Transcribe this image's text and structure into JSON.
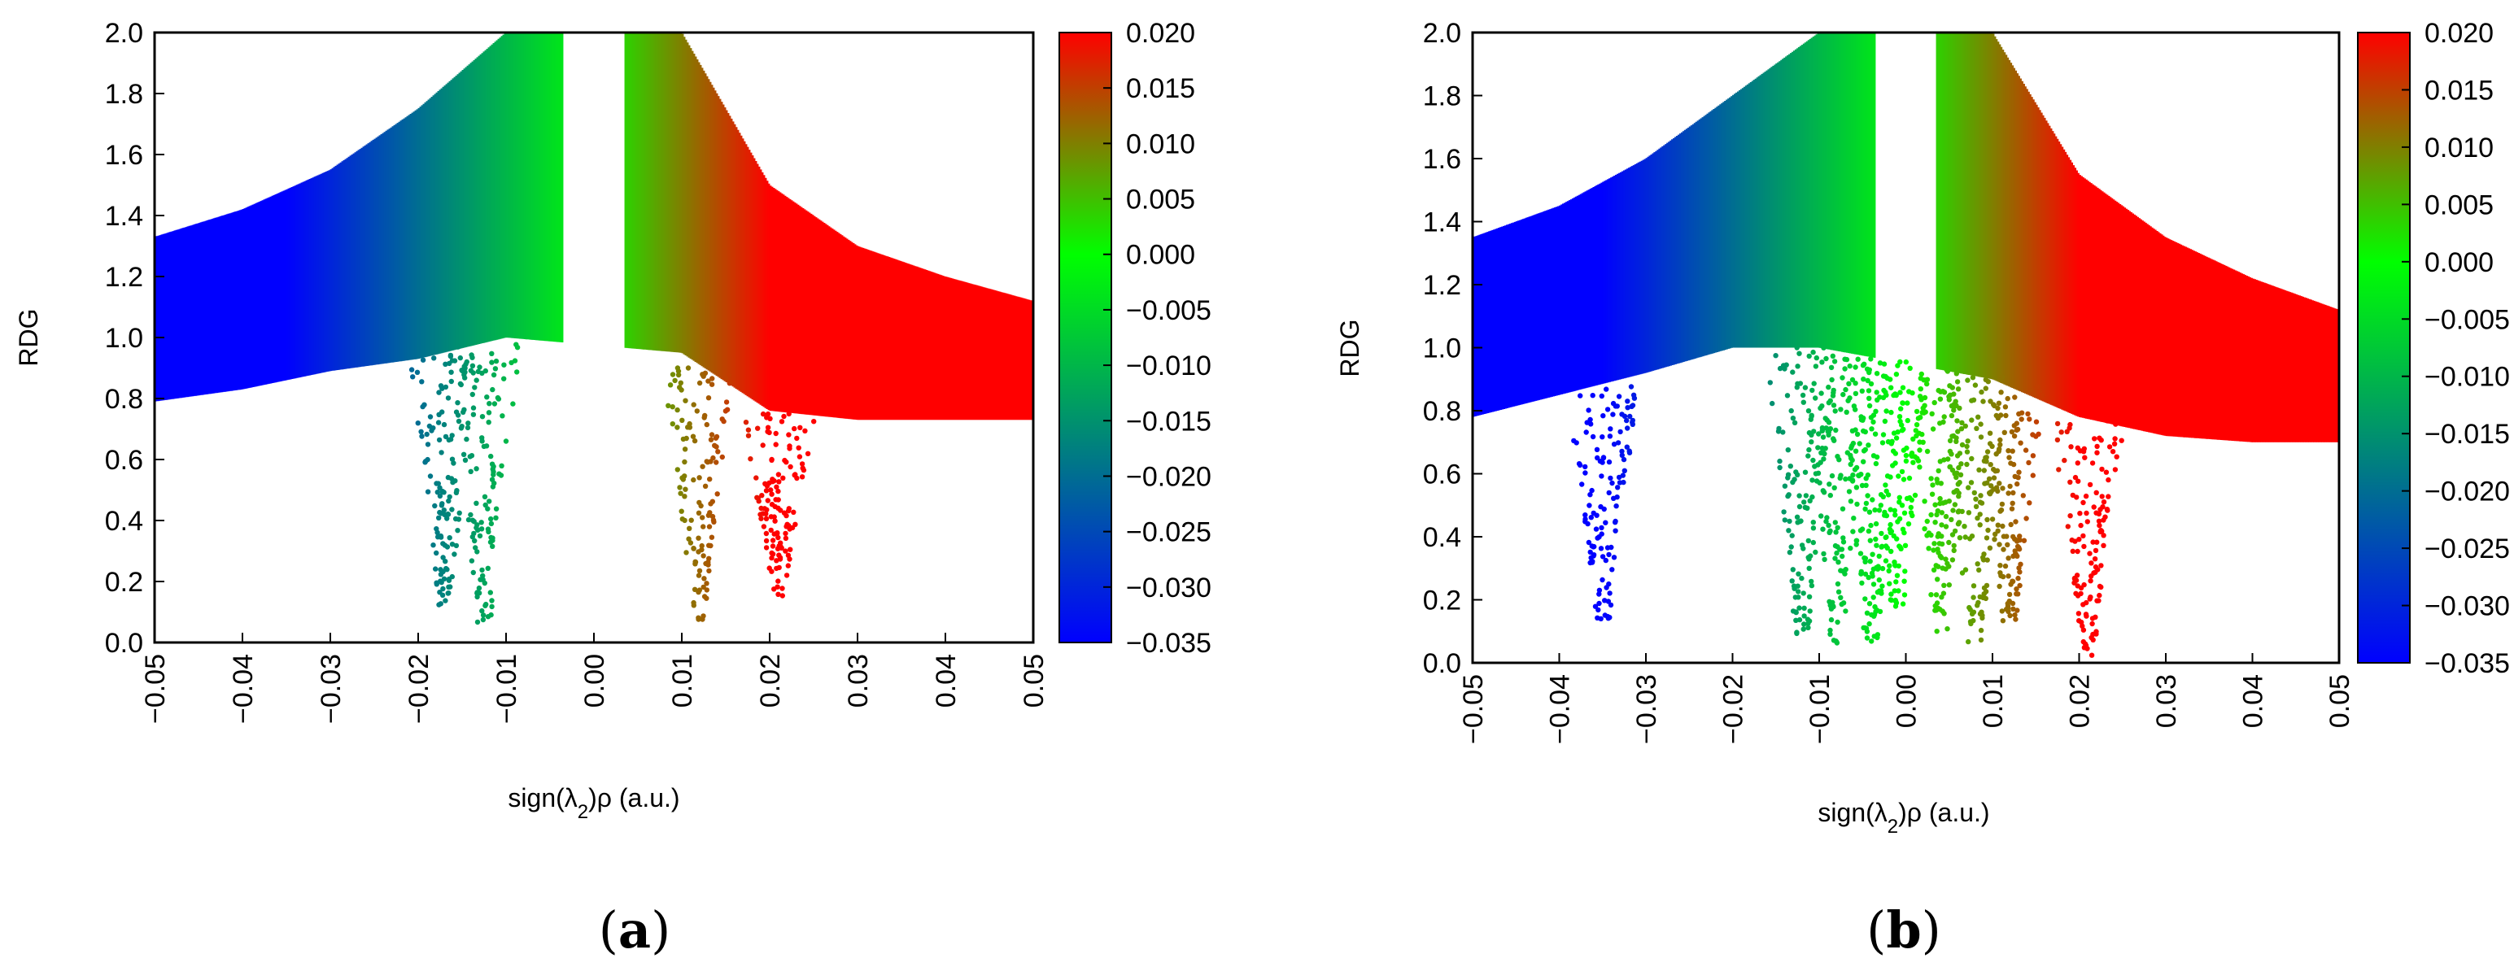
{
  "chart_data": [
    {
      "type": "scatter",
      "panel_label": "(a)",
      "panel_letter": "a",
      "xlabel": "sign(λ2)ρ (a.u.)",
      "ylabel": "RDG",
      "xlim": [
        -0.05,
        0.05
      ],
      "ylim": [
        0.0,
        2.0
      ],
      "xticks": [
        "−0.05",
        "−0.04",
        "−0.03",
        "−0.02",
        "−0.01",
        "0.00",
        "0.01",
        "0.02",
        "0.03",
        "0.04",
        "0.05"
      ],
      "yticks": [
        "0.0",
        "0.2",
        "0.4",
        "0.6",
        "0.8",
        "1.0",
        "1.2",
        "1.4",
        "1.6",
        "1.8",
        "2.0"
      ],
      "colorbar": {
        "range": [
          -0.035,
          0.02
        ],
        "ticks": [
          "0.020",
          "0.015",
          "0.010",
          "0.005",
          "0.000",
          "−0.005",
          "−0.010",
          "−0.015",
          "−0.020",
          "−0.025",
          "−0.030",
          "−0.035"
        ],
        "colors": [
          "#0000ff",
          "#00ff00",
          "#ff0000"
        ]
      },
      "main_band": {
        "x": [
          -0.05,
          -0.04,
          -0.03,
          -0.02,
          -0.01,
          0.01,
          0.02,
          0.03,
          0.04,
          0.05
        ],
        "upper": [
          1.33,
          1.42,
          1.55,
          1.75,
          2.0,
          2.0,
          1.5,
          1.3,
          1.2,
          1.12
        ],
        "lower": [
          0.79,
          0.83,
          0.89,
          0.93,
          1.0,
          0.95,
          0.76,
          0.73,
          0.73,
          0.73
        ]
      },
      "spikes": [
        {
          "x": -0.0125,
          "min_rdg": 0.05
        },
        {
          "x": -0.017,
          "min_rdg": 0.12
        },
        {
          "x": 0.012,
          "min_rdg": 0.07
        },
        {
          "x": 0.021,
          "min_rdg": 0.15
        }
      ]
    },
    {
      "type": "scatter",
      "panel_label": "(b)",
      "panel_letter": "b",
      "xlabel": "sign(λ2)ρ (a.u.)",
      "ylabel": "RDG",
      "xlim": [
        -0.05,
        0.05
      ],
      "ylim": [
        0.0,
        2.0
      ],
      "xticks": [
        "−0.05",
        "−0.04",
        "−0.03",
        "−0.02",
        "−0.01",
        "0.00",
        "0.01",
        "0.02",
        "0.03",
        "0.04",
        "0.05"
      ],
      "yticks": [
        "0.0",
        "0.2",
        "0.4",
        "0.6",
        "0.8",
        "1.0",
        "1.2",
        "1.4",
        "1.6",
        "1.8",
        "2.0"
      ],
      "colorbar": {
        "range": [
          -0.035,
          0.02
        ],
        "ticks": [
          "0.020",
          "0.015",
          "0.010",
          "0.005",
          "0.000",
          "−0.005",
          "−0.010",
          "−0.015",
          "−0.020",
          "−0.025",
          "−0.030",
          "−0.035"
        ],
        "colors": [
          "#0000ff",
          "#00ff00",
          "#ff0000"
        ]
      },
      "main_band": {
        "x": [
          -0.05,
          -0.04,
          -0.03,
          -0.02,
          -0.01,
          0.01,
          0.02,
          0.03,
          0.04,
          0.05
        ],
        "upper": [
          1.35,
          1.45,
          1.6,
          1.8,
          2.0,
          2.0,
          1.55,
          1.35,
          1.22,
          1.12
        ],
        "lower": [
          0.78,
          0.85,
          0.92,
          1.0,
          1.0,
          0.9,
          0.78,
          0.72,
          0.7,
          0.7
        ]
      },
      "spikes": [
        {
          "x": -0.035,
          "min_rdg": 0.12
        },
        {
          "x": -0.012,
          "min_rdg": 0.08
        },
        {
          "x": -0.008,
          "min_rdg": 0.06
        },
        {
          "x": -0.004,
          "min_rdg": 0.06
        },
        {
          "x": -0.001,
          "min_rdg": 0.15
        },
        {
          "x": 0.004,
          "min_rdg": 0.1
        },
        {
          "x": 0.008,
          "min_rdg": 0.05
        },
        {
          "x": 0.012,
          "min_rdg": 0.12
        },
        {
          "x": 0.021,
          "min_rdg": 0.02
        }
      ]
    }
  ]
}
